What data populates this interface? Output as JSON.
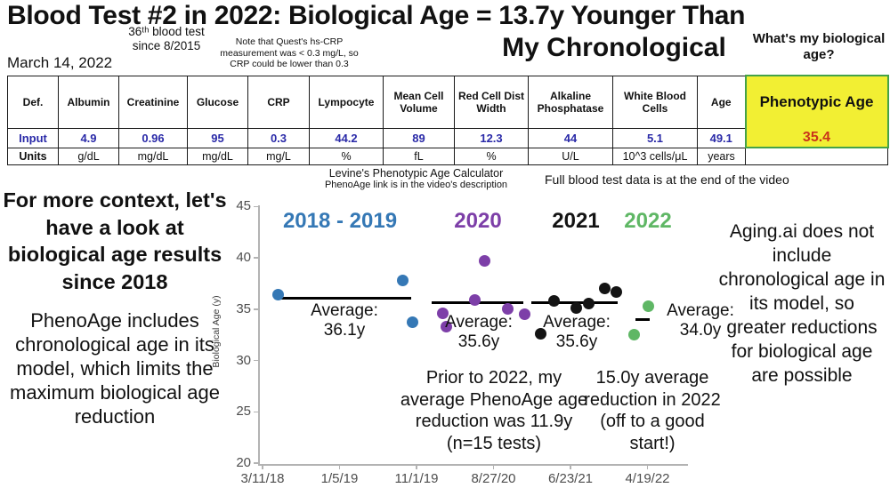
{
  "header": {
    "title_line1": "Blood Test #2 in 2022: Biological Age = 13.7y Younger Than",
    "title_line2": "My Chronological",
    "subtitle_test_count": "36ᵗʰ blood test since 8/2015",
    "note_crp": "Note that Quest's hs-CRP measurement was < 0.3 mg/L, so CRP could be lower than 0.3",
    "date": "March 14, 2022",
    "question": "What's my biological age?"
  },
  "table": {
    "columns": [
      "Def.",
      "Albumin",
      "Creatinine",
      "Glucose",
      "CRP",
      "Lympocyte",
      "Mean Cell Volume",
      "Red Cell Dist Width",
      "Alkaline Phosphatase",
      "White Blood Cells",
      "Age",
      "Phenotypic Age"
    ],
    "input_label": "Input",
    "units_label": "Units",
    "input_values": [
      "4.9",
      "0.96",
      "95",
      "0.3",
      "44.2",
      "89",
      "12.3",
      "44",
      "5.1",
      "49.1"
    ],
    "phenotypic_age_value": "35.4",
    "units_values": [
      "g/dL",
      "mg/dL",
      "mg/dL",
      "mg/L",
      "%",
      "fL",
      "%",
      "U/L",
      "10^3 cells/μL",
      "years"
    ]
  },
  "captions": {
    "calculator_line1": "Levine's Phenotypic Age Calculator",
    "calculator_line2": "PhenoAge link is in the video's description",
    "full_data_note": "Full blood test data is at the end of the video"
  },
  "left_panel": {
    "heading": "For more context, let's have a look at biological age results since 2018",
    "body": "PhenoAge includes chronological age in its model, which limits the maximum biological age reduction"
  },
  "right_panel": {
    "body": "Aging.ai does not include chronological age in its model, so greater reductions for biological age are possible"
  },
  "chart_data": {
    "type": "scatter",
    "title": "",
    "xlabel": "",
    "ylabel": "Biological Age (y)",
    "ylim": [
      20,
      45
    ],
    "yticks": [
      20,
      25,
      30,
      35,
      40,
      45
    ],
    "xticklabels": [
      "3/11/18",
      "1/5/19",
      "11/1/19",
      "8/27/20",
      "6/23/21",
      "4/19/22"
    ],
    "x_axis_note": "x values below are in tick-index units: 0 = 3/11/18 tick, 5 = 4/19/22 tick",
    "legend_position": "top",
    "grid": false,
    "series": [
      {
        "name": "2018 - 2019",
        "color": "#3578b5",
        "points": [
          [
            0.2,
            36.4
          ],
          [
            1.82,
            37.8
          ],
          [
            1.95,
            33.7
          ]
        ],
        "average": 36.1,
        "average_label": [
          "Average:",
          "36.1y"
        ],
        "avg_line_span": [
          0.19,
          1.93
        ]
      },
      {
        "name": "2020",
        "color": "#7d3fa8",
        "points": [
          [
            2.34,
            34.6
          ],
          [
            2.39,
            33.3
          ],
          [
            2.76,
            35.9
          ],
          [
            2.88,
            39.7
          ],
          [
            3.19,
            35.0
          ],
          [
            3.41,
            34.5
          ]
        ],
        "average": 35.6,
        "average_label": [
          "Average:",
          "35.6y"
        ],
        "avg_line_span": [
          2.2,
          3.39
        ]
      },
      {
        "name": "2021",
        "color": "#141414",
        "points": [
          [
            3.61,
            32.6
          ],
          [
            3.79,
            35.8
          ],
          [
            4.08,
            35.1
          ],
          [
            4.24,
            35.5
          ],
          [
            4.44,
            37.0
          ],
          [
            4.59,
            36.7
          ]
        ],
        "average": 35.6,
        "average_label": [
          "Average:",
          "35.6y"
        ],
        "avg_line_span": [
          3.49,
          4.61
        ]
      },
      {
        "name": "2022",
        "color": "#5fb765",
        "points": [
          [
            4.83,
            32.5
          ],
          [
            5.01,
            35.3
          ]
        ],
        "average": 34.0,
        "average_label": [
          "Average:",
          "34.0y"
        ],
        "avg_line_span": [
          4.84,
          5.03
        ]
      }
    ],
    "annotations": [
      "Prior to 2022, my average PhenoAge age reduction was 11.9y (n=15 tests)",
      "15.0y average reduction in 2022 (off to a good start!)"
    ]
  }
}
